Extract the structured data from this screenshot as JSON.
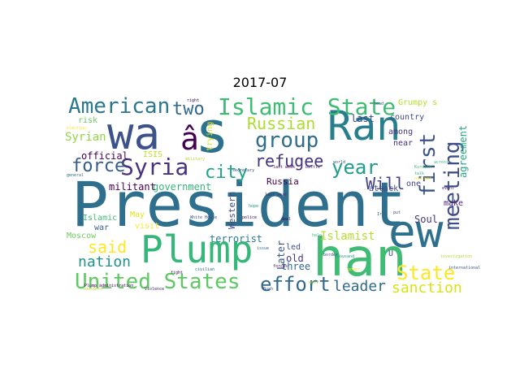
{
  "title": "2017-07",
  "words": [
    {
      "text": "President",
      "color": "#2e6f8e",
      "rotate": false
    },
    {
      "text": "Plump",
      "color": "#35b779",
      "rotate": false
    },
    {
      "text": "han",
      "color": "#3fbc73",
      "rotate": false
    },
    {
      "text": "ew",
      "color": "#2d708e",
      "rotate": false
    },
    {
      "text": "wa",
      "color": "#3b528b",
      "rotate": false
    },
    {
      "text": "s",
      "color": "#2c728e",
      "rotate": false
    },
    {
      "text": "â",
      "color": "#440154",
      "rotate": false
    },
    {
      "text": "Ran",
      "color": "#277f8e",
      "rotate": false
    },
    {
      "text": "Islamic State",
      "color": "#3fbc73",
      "rotate": false
    },
    {
      "text": "American",
      "color": "#2a788e",
      "rotate": false
    },
    {
      "text": "United States",
      "color": "#5ec962",
      "rotate": false
    },
    {
      "text": "Syria",
      "color": "#46327e",
      "rotate": false
    },
    {
      "text": "group",
      "color": "#2e6e8e",
      "rotate": false
    },
    {
      "text": "Russian",
      "color": "#addc30",
      "rotate": false
    },
    {
      "text": "two",
      "color": "#31688e",
      "rotate": false
    },
    {
      "text": "force",
      "color": "#365c8d",
      "rotate": false
    },
    {
      "text": "city",
      "color": "#20a386",
      "rotate": false
    },
    {
      "text": "refugee",
      "color": "#46337f",
      "rotate": false
    },
    {
      "text": "year",
      "color": "#1f9e89",
      "rotate": false
    },
    {
      "text": "Will",
      "color": "#424086",
      "rotate": false
    },
    {
      "text": "first",
      "color": "#3b528b",
      "rotate": true
    },
    {
      "text": "meeting",
      "color": "#3e4c8a",
      "rotate": true
    },
    {
      "text": "said",
      "color": "#fde725",
      "rotate": false
    },
    {
      "text": "nation",
      "color": "#21918c",
      "rotate": false
    },
    {
      "text": "effort",
      "color": "#31688e",
      "rotate": false
    },
    {
      "text": "leader",
      "color": "#306a8e",
      "rotate": false
    },
    {
      "text": "sanction",
      "color": "#d8e219",
      "rotate": false
    },
    {
      "text": "State",
      "color": "#fde725",
      "rotate": false
    },
    {
      "text": "Islamist",
      "color": "#b5de2b",
      "rotate": false
    },
    {
      "text": "Syrian",
      "color": "#8fd744",
      "rotate": false
    },
    {
      "text": "Grumpy s",
      "color": "#b8de29",
      "rotate": false
    },
    {
      "text": "country",
      "color": "#3e4a89",
      "rotate": false
    },
    {
      "text": "last",
      "color": "#414487",
      "rotate": false
    },
    {
      "text": "among",
      "color": "#46337f",
      "rotate": false
    },
    {
      "text": "near",
      "color": "#472d7b",
      "rotate": false
    },
    {
      "text": "agreement",
      "color": "#22a884",
      "rotate": true
    },
    {
      "text": "Soul",
      "color": "#453781",
      "rotate": false
    },
    {
      "text": "make",
      "color": "#482475",
      "rotate": false
    },
    {
      "text": "one",
      "color": "#404588",
      "rotate": false
    },
    {
      "text": "attack",
      "color": "#3e4989",
      "rotate": false
    },
    {
      "text": "Russia",
      "color": "#440154",
      "rotate": false
    },
    {
      "text": "Western",
      "color": "#3e4a89",
      "rotate": true
    },
    {
      "text": "led",
      "color": "#3b528b",
      "rotate": false
    },
    {
      "text": "old",
      "color": "#453882",
      "rotate": false
    },
    {
      "text": "three",
      "color": "#31688e",
      "rotate": false
    },
    {
      "text": "Later",
      "color": "#3a548c",
      "rotate": true
    },
    {
      "text": "terrorist",
      "color": "#287c8e",
      "rotate": false
    },
    {
      "text": "government",
      "color": "#35b779",
      "rotate": false
    },
    {
      "text": "militant",
      "color": "#440154",
      "rotate": false
    },
    {
      "text": "official",
      "color": "#440154",
      "rotate": false
    },
    {
      "text": "ISIS",
      "color": "#bddf26",
      "rotate": false
    },
    {
      "text": "trying",
      "color": "#d8e219",
      "rotate": true
    },
    {
      "text": "May",
      "color": "#dfe318",
      "rotate": false
    },
    {
      "text": "visit",
      "color": "#fde725",
      "rotate": false
    },
    {
      "text": "Islamic",
      "color": "#3fbc73",
      "rotate": false
    },
    {
      "text": "war",
      "color": "#34608d",
      "rotate": false
    },
    {
      "text": "Moscow",
      "color": "#6ccd5a",
      "rotate": false
    },
    {
      "text": "risk",
      "color": "#65cb5e",
      "rotate": false
    },
    {
      "text": "U",
      "color": "#3b528b",
      "rotate": false
    },
    {
      "text": "Plump administration",
      "color": "#440154",
      "rotate": false
    },
    {
      "text": "Violence",
      "color": "#482475",
      "rotate": false
    },
    {
      "text": "White House",
      "color": "#3b528b",
      "rotate": false
    },
    {
      "text": "military",
      "color": "#b5de2b",
      "rotate": false
    },
    {
      "text": "investigation",
      "color": "#addc30",
      "rotate": false
    },
    {
      "text": "international",
      "color": "#3b528b",
      "rotate": false
    },
    {
      "text": "civilian",
      "color": "#31688e",
      "rotate": false
    },
    {
      "text": "thousand",
      "color": "#1f9e89",
      "rotate": false
    },
    {
      "text": "police",
      "color": "#440154",
      "rotate": false
    },
    {
      "text": "secretary",
      "color": "#3e4989",
      "rotate": false
    },
    {
      "text": "last week",
      "color": "#440154",
      "rotate": false
    },
    {
      "text": "battle",
      "color": "#482475",
      "rotate": false
    },
    {
      "text": "world",
      "color": "#3b528b",
      "rotate": false
    },
    {
      "text": "general",
      "color": "#31688e",
      "rotate": false
    },
    {
      "text": "election",
      "color": "#fde725",
      "rotate": false
    },
    {
      "text": "southern",
      "color": "#b5de2b",
      "rotate": false
    },
    {
      "text": "Kurdish",
      "color": "#3fbc73",
      "rotate": false
    },
    {
      "text": "right",
      "color": "#440154",
      "rotate": false
    },
    {
      "text": "head",
      "color": "#3b528b",
      "rotate": false
    },
    {
      "text": "event",
      "color": "#482475",
      "rotate": false
    },
    {
      "text": "nuclear",
      "color": "#fde725",
      "rotate": false
    },
    {
      "text": "talk",
      "color": "#35b779",
      "rotate": false
    },
    {
      "text": "deal",
      "color": "#440154",
      "rotate": false
    },
    {
      "text": "put",
      "color": "#3b528b",
      "rotate": false
    },
    {
      "text": "Iraq",
      "color": "#31688e",
      "rotate": false
    },
    {
      "text": "hope",
      "color": "#1f9e89",
      "rotate": false
    },
    {
      "text": "forces",
      "color": "#440154",
      "rotate": false
    },
    {
      "text": "Bush",
      "color": "#3b528b",
      "rotate": false
    },
    {
      "text": "power",
      "color": "#fde725",
      "rotate": false
    },
    {
      "text": "west",
      "color": "#b5de2b",
      "rotate": false
    },
    {
      "text": "help",
      "color": "#3fbc73",
      "rotate": false
    },
    {
      "text": "fight",
      "color": "#440154",
      "rotate": false
    },
    {
      "text": "issue",
      "color": "#31688e",
      "rotate": false
    },
    {
      "text": "last year",
      "color": "#482475",
      "rotate": false
    },
    {
      "text": "border",
      "color": "#3b528b",
      "rotate": false
    },
    {
      "text": "across",
      "color": "#35b779",
      "rotate": false
    }
  ]
}
